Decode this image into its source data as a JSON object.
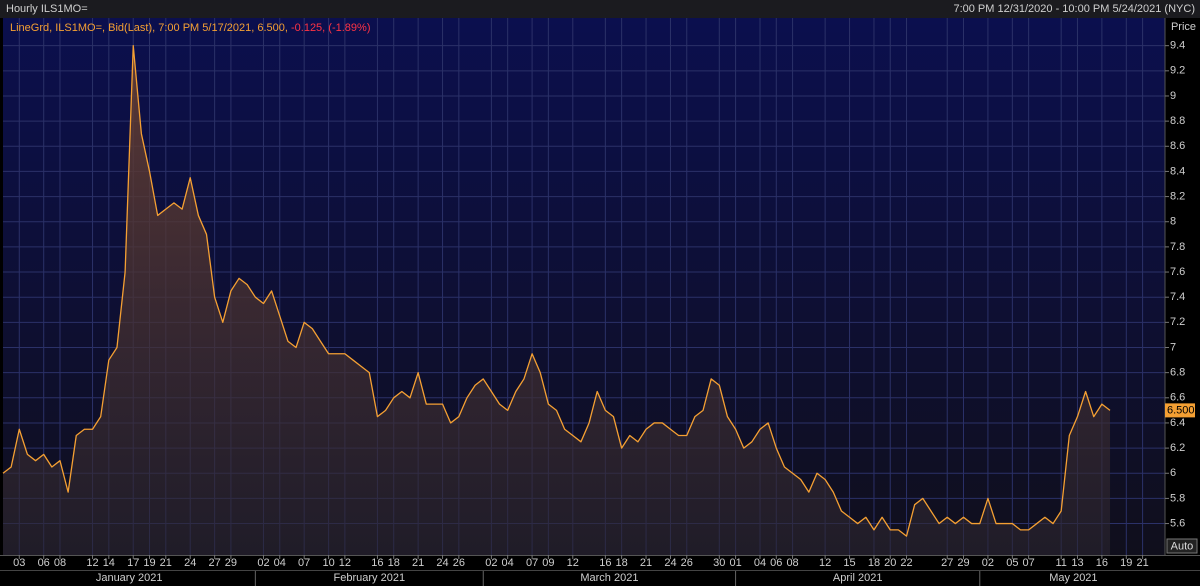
{
  "chart_data": {
    "type": "line",
    "title": "Hourly ILS1MO=",
    "subtitle": "7:00 PM 12/31/2020 - 10:00 PM 5/24/2021 (NYC)",
    "y_axis_label": "Price",
    "button": "Auto",
    "change": {
      "value": -0.125,
      "label": "-0.125,"
    },
    "change_pct": {
      "value": -1.89,
      "label": "(-1.89%)"
    },
    "last_value": {
      "value": 6.5,
      "label": "6.500"
    },
    "grid": true,
    "xlim": [
      "2021-01-01",
      "2021-05-24"
    ],
    "ylim": [
      5.35,
      9.62
    ],
    "yticks": [
      5.6,
      5.8,
      6,
      6.2,
      6.4,
      6.6,
      6.8,
      7,
      7.2,
      7.4,
      7.6,
      7.8,
      8,
      8.2,
      8.4,
      8.6,
      8.8,
      9,
      9.2,
      9.4
    ],
    "xticks": [
      {
        "value": "2021-01-03",
        "label": "03"
      },
      {
        "value": "2021-01-06",
        "label": "06"
      },
      {
        "value": "2021-01-08",
        "label": "08"
      },
      {
        "value": "2021-01-12",
        "label": "12"
      },
      {
        "value": "2021-01-14",
        "label": "14"
      },
      {
        "value": "2021-01-17",
        "label": "17"
      },
      {
        "value": "2021-01-19",
        "label": "19"
      },
      {
        "value": "2021-01-21",
        "label": "21"
      },
      {
        "value": "2021-01-24",
        "label": "24"
      },
      {
        "value": "2021-01-27",
        "label": "27"
      },
      {
        "value": "2021-01-29",
        "label": "29"
      },
      {
        "value": "2021-02-02",
        "label": "02"
      },
      {
        "value": "2021-02-04",
        "label": "04"
      },
      {
        "value": "2021-02-07",
        "label": "07"
      },
      {
        "value": "2021-02-10",
        "label": "10"
      },
      {
        "value": "2021-02-12",
        "label": "12"
      },
      {
        "value": "2021-02-16",
        "label": "16"
      },
      {
        "value": "2021-02-18",
        "label": "18"
      },
      {
        "value": "2021-02-21",
        "label": "21"
      },
      {
        "value": "2021-02-24",
        "label": "24"
      },
      {
        "value": "2021-02-26",
        "label": "26"
      },
      {
        "value": "2021-03-02",
        "label": "02"
      },
      {
        "value": "2021-03-04",
        "label": "04"
      },
      {
        "value": "2021-03-07",
        "label": "07"
      },
      {
        "value": "2021-03-09",
        "label": "09"
      },
      {
        "value": "2021-03-12",
        "label": "12"
      },
      {
        "value": "2021-03-16",
        "label": "16"
      },
      {
        "value": "2021-03-18",
        "label": "18"
      },
      {
        "value": "2021-03-21",
        "label": "21"
      },
      {
        "value": "2021-03-24",
        "label": "24"
      },
      {
        "value": "2021-03-26",
        "label": "26"
      },
      {
        "value": "2021-03-30",
        "label": "30"
      },
      {
        "value": "2021-04-01",
        "label": "01"
      },
      {
        "value": "2021-04-04",
        "label": "04"
      },
      {
        "value": "2021-04-06",
        "label": "06"
      },
      {
        "value": "2021-04-08",
        "label": "08"
      },
      {
        "value": "2021-04-12",
        "label": "12"
      },
      {
        "value": "2021-04-15",
        "label": "15"
      },
      {
        "value": "2021-04-18",
        "label": "18"
      },
      {
        "value": "2021-04-20",
        "label": "20"
      },
      {
        "value": "2021-04-22",
        "label": "22"
      },
      {
        "value": "2021-04-27",
        "label": "27"
      },
      {
        "value": "2021-04-29",
        "label": "29"
      },
      {
        "value": "2021-05-02",
        "label": "02"
      },
      {
        "value": "2021-05-05",
        "label": "05"
      },
      {
        "value": "2021-05-07",
        "label": "07"
      },
      {
        "value": "2021-05-11",
        "label": "11"
      },
      {
        "value": "2021-05-13",
        "label": "13"
      },
      {
        "value": "2021-05-16",
        "label": "16"
      },
      {
        "value": "2021-05-19",
        "label": "19"
      },
      {
        "value": "2021-05-21",
        "label": "21"
      }
    ],
    "month_ticks": [
      {
        "value": "2021-01-01",
        "label": "January 2021"
      },
      {
        "value": "2021-02-01",
        "label": "February 2021"
      },
      {
        "value": "2021-03-01",
        "label": "March 2021"
      },
      {
        "value": "2021-04-01",
        "label": "April 2021"
      },
      {
        "value": "2021-05-01",
        "label": "May 2021"
      }
    ],
    "series": [
      {
        "name": "LineGrd, ILS1MO=, Bid(Last), 7:00 PM 5/17/2021, 6.500,",
        "color": "#f5a033",
        "x": [
          "2021-01-01",
          "2021-01-02",
          "2021-01-03",
          "2021-01-04",
          "2021-01-05",
          "2021-01-06",
          "2021-01-07",
          "2021-01-08",
          "2021-01-09",
          "2021-01-10",
          "2021-01-11",
          "2021-01-12",
          "2021-01-13",
          "2021-01-14",
          "2021-01-15",
          "2021-01-16",
          "2021-01-17",
          "2021-01-18",
          "2021-01-19",
          "2021-01-20",
          "2021-01-21",
          "2021-01-22",
          "2021-01-23",
          "2021-01-24",
          "2021-01-25",
          "2021-01-26",
          "2021-01-27",
          "2021-01-28",
          "2021-01-29",
          "2021-01-30",
          "2021-01-31",
          "2021-02-01",
          "2021-02-02",
          "2021-02-03",
          "2021-02-04",
          "2021-02-05",
          "2021-02-06",
          "2021-02-07",
          "2021-02-08",
          "2021-02-09",
          "2021-02-10",
          "2021-02-11",
          "2021-02-12",
          "2021-02-13",
          "2021-02-14",
          "2021-02-15",
          "2021-02-16",
          "2021-02-17",
          "2021-02-18",
          "2021-02-19",
          "2021-02-20",
          "2021-02-21",
          "2021-02-22",
          "2021-02-23",
          "2021-02-24",
          "2021-02-25",
          "2021-02-26",
          "2021-02-27",
          "2021-02-28",
          "2021-03-01",
          "2021-03-02",
          "2021-03-03",
          "2021-03-04",
          "2021-03-05",
          "2021-03-06",
          "2021-03-07",
          "2021-03-08",
          "2021-03-09",
          "2021-03-10",
          "2021-03-11",
          "2021-03-12",
          "2021-03-13",
          "2021-03-14",
          "2021-03-15",
          "2021-03-16",
          "2021-03-17",
          "2021-03-18",
          "2021-03-19",
          "2021-03-20",
          "2021-03-21",
          "2021-03-22",
          "2021-03-23",
          "2021-03-24",
          "2021-03-25",
          "2021-03-26",
          "2021-03-27",
          "2021-03-28",
          "2021-03-29",
          "2021-03-30",
          "2021-03-31",
          "2021-04-01",
          "2021-04-02",
          "2021-04-03",
          "2021-04-04",
          "2021-04-05",
          "2021-04-06",
          "2021-04-07",
          "2021-04-08",
          "2021-04-09",
          "2021-04-10",
          "2021-04-11",
          "2021-04-12",
          "2021-04-13",
          "2021-04-14",
          "2021-04-15",
          "2021-04-16",
          "2021-04-17",
          "2021-04-18",
          "2021-04-19",
          "2021-04-20",
          "2021-04-21",
          "2021-04-22",
          "2021-04-23",
          "2021-04-24",
          "2021-04-25",
          "2021-04-26",
          "2021-04-27",
          "2021-04-28",
          "2021-04-29",
          "2021-04-30",
          "2021-05-01",
          "2021-05-02",
          "2021-05-03",
          "2021-05-04",
          "2021-05-05",
          "2021-05-06",
          "2021-05-07",
          "2021-05-08",
          "2021-05-09",
          "2021-05-10",
          "2021-05-11",
          "2021-05-12",
          "2021-05-13",
          "2021-05-14",
          "2021-05-15",
          "2021-05-16",
          "2021-05-17"
        ],
        "values": [
          6.0,
          6.05,
          6.35,
          6.15,
          6.1,
          6.15,
          6.05,
          6.1,
          5.85,
          6.3,
          6.35,
          6.35,
          6.45,
          6.9,
          7.0,
          7.6,
          9.4,
          8.7,
          8.4,
          8.05,
          8.1,
          8.15,
          8.1,
          8.35,
          8.05,
          7.9,
          7.4,
          7.2,
          7.45,
          7.55,
          7.5,
          7.4,
          7.35,
          7.45,
          7.25,
          7.05,
          7.0,
          7.2,
          7.15,
          7.05,
          6.95,
          6.95,
          6.95,
          6.9,
          6.85,
          6.8,
          6.45,
          6.5,
          6.6,
          6.65,
          6.6,
          6.8,
          6.55,
          6.55,
          6.55,
          6.4,
          6.45,
          6.6,
          6.7,
          6.75,
          6.65,
          6.55,
          6.5,
          6.65,
          6.75,
          6.95,
          6.8,
          6.55,
          6.5,
          6.35,
          6.3,
          6.25,
          6.4,
          6.65,
          6.5,
          6.45,
          6.2,
          6.3,
          6.25,
          6.35,
          6.4,
          6.4,
          6.35,
          6.3,
          6.3,
          6.45,
          6.5,
          6.75,
          6.7,
          6.45,
          6.35,
          6.2,
          6.25,
          6.35,
          6.4,
          6.2,
          6.05,
          6.0,
          5.95,
          5.85,
          6.0,
          5.95,
          5.85,
          5.7,
          5.65,
          5.6,
          5.65,
          5.55,
          5.65,
          5.55,
          5.55,
          5.5,
          5.75,
          5.8,
          5.7,
          5.6,
          5.65,
          5.6,
          5.65,
          5.6,
          5.6,
          5.8,
          5.6,
          5.6,
          5.6,
          5.55,
          5.55,
          5.6,
          5.65,
          5.6,
          5.7,
          6.3,
          6.45,
          6.65,
          6.45,
          6.55,
          6.5
        ]
      }
    ]
  }
}
